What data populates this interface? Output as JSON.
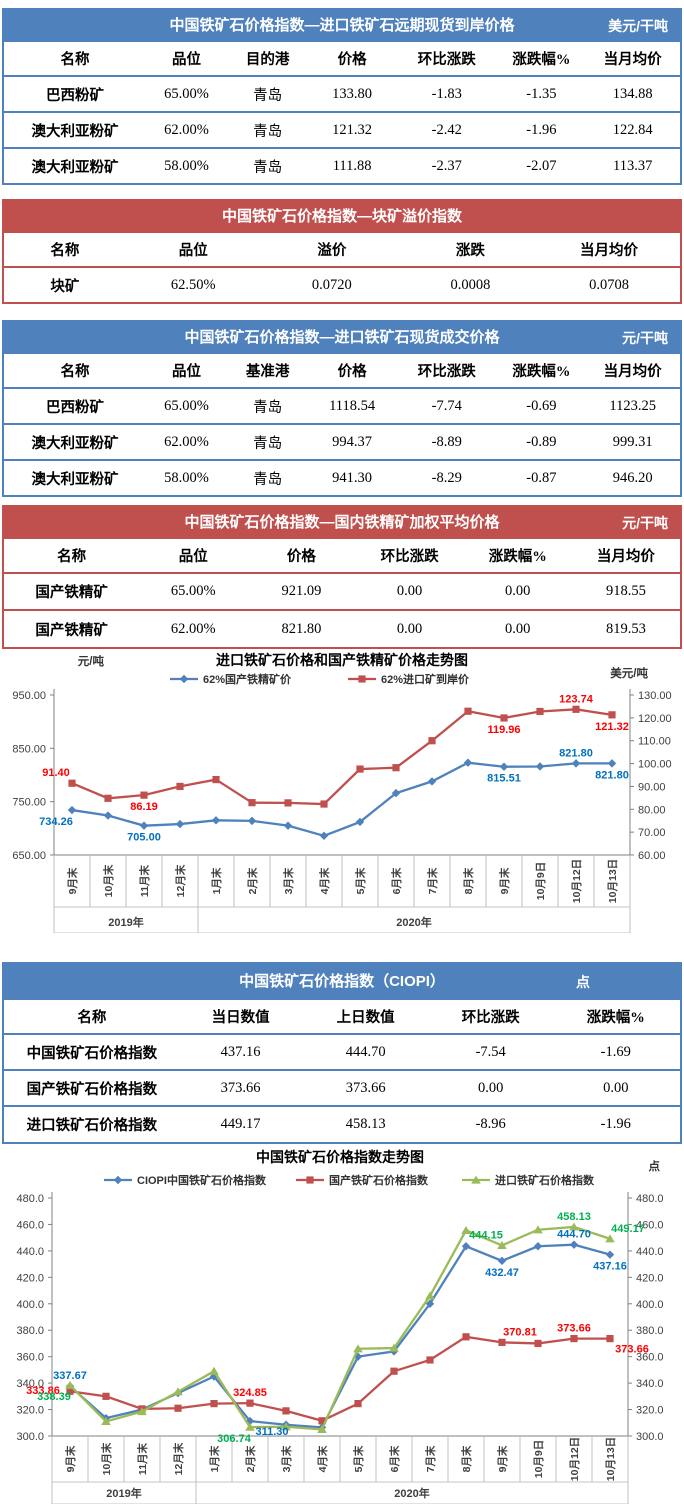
{
  "colors": {
    "blue_theme": "#4f81bd",
    "red_theme": "#c0504d",
    "label_blue": "#0070c0",
    "label_red": "#ff0000",
    "label_green": "#00b050"
  },
  "tables": {
    "t1": {
      "title": "中国铁矿石价格指数—进口铁矿石远期现货到岸价格",
      "unit": "美元/干吨",
      "headers": [
        "名称",
        "品位",
        "目的港",
        "价格",
        "环比涨跌",
        "涨跌幅%",
        "当月均价"
      ],
      "rows": [
        [
          "巴西粉矿",
          "65.00%",
          "青岛",
          "133.80",
          "-1.83",
          "-1.35",
          "134.88"
        ],
        [
          "澳大利亚粉矿",
          "62.00%",
          "青岛",
          "121.32",
          "-2.42",
          "-1.96",
          "122.84"
        ],
        [
          "澳大利亚粉矿",
          "58.00%",
          "青岛",
          "111.88",
          "-2.37",
          "-2.07",
          "113.37"
        ]
      ]
    },
    "t2": {
      "title": "中国铁矿石价格指数—块矿溢价指数",
      "headers": [
        "名称",
        "品位",
        "溢价",
        "涨跌",
        "当月均价"
      ],
      "rows": [
        [
          "块矿",
          "62.50%",
          "0.0720",
          "0.0008",
          "0.0708"
        ]
      ]
    },
    "t3": {
      "title": "中国铁矿石价格指数—进口铁矿石现货成交价格",
      "unit": "元/干吨",
      "headers": [
        "名称",
        "品位",
        "基准港",
        "价格",
        "环比涨跌",
        "涨跌幅%",
        "当月均价"
      ],
      "rows": [
        [
          "巴西粉矿",
          "65.00%",
          "青岛",
          "1118.54",
          "-7.74",
          "-0.69",
          "1123.25"
        ],
        [
          "澳大利亚粉矿",
          "62.00%",
          "青岛",
          "994.37",
          "-8.89",
          "-0.89",
          "999.31"
        ],
        [
          "澳大利亚粉矿",
          "58.00%",
          "青岛",
          "941.30",
          "-8.29",
          "-0.87",
          "946.20"
        ]
      ]
    },
    "t4": {
      "title": "中国铁矿石价格指数—国内铁精矿加权平均价格",
      "unit": "元/干吨",
      "headers": [
        "名称",
        "品位",
        "价格",
        "环比涨跌",
        "涨跌幅%",
        "当月均价"
      ],
      "rows": [
        [
          "国产铁精矿",
          "65.00%",
          "921.09",
          "0.00",
          "0.00",
          "918.55"
        ],
        [
          "国产铁精矿",
          "62.00%",
          "821.80",
          "0.00",
          "0.00",
          "819.53"
        ]
      ]
    },
    "t5": {
      "title": "中国铁矿石价格指数（CIOPI）",
      "unit": "点",
      "headers": [
        "名称",
        "当日数值",
        "上日数值",
        "环比涨跌",
        "涨跌幅%"
      ],
      "rows": [
        [
          "中国铁矿石价格指数",
          "437.16",
          "444.70",
          "-7.54",
          "-1.69"
        ],
        [
          "国产铁矿石价格指数",
          "373.66",
          "373.66",
          "0.00",
          "0.00"
        ],
        [
          "进口铁矿石价格指数",
          "449.17",
          "458.13",
          "-8.96",
          "-1.96"
        ]
      ]
    }
  },
  "chart_data": [
    {
      "type": "line",
      "title": "进口铁矿石价格和国产铁精矿价格走势图",
      "unit_left": "元/吨",
      "unit_right": "美元/吨",
      "grid": false,
      "legend_position": "top",
      "left_axis": {
        "min": 650,
        "max": 950,
        "step": 100,
        "decimals": 2
      },
      "right_axis": {
        "min": 60,
        "max": 130,
        "step": 10,
        "decimals": 2
      },
      "categories": [
        "9月末",
        "10月末",
        "11月末",
        "12月末",
        "1月末",
        "2月末",
        "3月末",
        "4月末",
        "5月末",
        "6月末",
        "7月末",
        "8月末",
        "9月末",
        "10月9日",
        "10月12日",
        "10月13日"
      ],
      "year_groups": [
        {
          "label": "2019年",
          "span": 4
        },
        {
          "label": "2020年",
          "span": 12
        }
      ],
      "series": [
        {
          "name": "62%国产铁精矿价",
          "color": "#4f81bd",
          "marker": "diamond",
          "axis": "left",
          "values": [
            734.26,
            724,
            705,
            708,
            715,
            714,
            705,
            686,
            712,
            766,
            788,
            823,
            815.51,
            816,
            821.8,
            821.8
          ]
        },
        {
          "name": "62%进口矿到岸价",
          "color": "#c0504d",
          "marker": "square",
          "axis": "right",
          "values": [
            91.4,
            84.8,
            86.19,
            90,
            93,
            82.9,
            82.8,
            82.3,
            97.6,
            98.2,
            110,
            122.9,
            119.96,
            122.8,
            123.74,
            121.32
          ]
        }
      ],
      "annotations": [
        {
          "series": 1,
          "index": 0,
          "text": "91.40",
          "color": "#ff0000",
          "pos": "above-left"
        },
        {
          "series": 0,
          "index": 0,
          "text": "734.26",
          "color": "#0070c0",
          "pos": "below-left"
        },
        {
          "series": 1,
          "index": 2,
          "text": "86.19",
          "color": "#ff0000",
          "pos": "below"
        },
        {
          "series": 0,
          "index": 2,
          "text": "705.00",
          "color": "#0070c0",
          "pos": "below"
        },
        {
          "series": 1,
          "index": 12,
          "text": "119.96",
          "color": "#ff0000",
          "pos": "below"
        },
        {
          "series": 0,
          "index": 12,
          "text": "815.51",
          "color": "#0070c0",
          "pos": "below"
        },
        {
          "series": 1,
          "index": 14,
          "text": "123.74",
          "color": "#ff0000",
          "pos": "above"
        },
        {
          "series": 0,
          "index": 14,
          "text": "821.80",
          "color": "#0070c0",
          "pos": "above"
        },
        {
          "series": 1,
          "index": 15,
          "text": "121.32",
          "color": "#ff0000",
          "pos": "below"
        },
        {
          "series": 0,
          "index": 15,
          "text": "821.80",
          "color": "#0070c0",
          "pos": "below"
        }
      ]
    },
    {
      "type": "line",
      "title": "中国铁矿石价格指数走势图",
      "unit_right": "点",
      "grid": false,
      "legend_position": "top",
      "left_axis": {
        "min": 300,
        "max": 480,
        "step": 20,
        "decimals": 1
      },
      "right_axis": {
        "min": 300,
        "max": 480,
        "step": 20,
        "decimals": 1
      },
      "categories": [
        "9月末",
        "10月末",
        "11月末",
        "12月末",
        "1月末",
        "2月末",
        "3月末",
        "4月末",
        "5月末",
        "6月末",
        "7月末",
        "8月末",
        "9月末",
        "10月9日",
        "10月12日",
        "10月13日"
      ],
      "year_groups": [
        {
          "label": "2019年",
          "span": 4
        },
        {
          "label": "2020年",
          "span": 12
        }
      ],
      "series": [
        {
          "name": "CIOPI中国铁矿石价格指数",
          "color": "#4f81bd",
          "marker": "diamond",
          "axis": "left",
          "values": [
            337.67,
            313.5,
            320,
            332.5,
            345,
            311.3,
            308.5,
            306.5,
            360,
            364,
            400,
            443.5,
            432.47,
            443.5,
            444.7,
            437.16
          ]
        },
        {
          "name": "国产铁矿石价格指数",
          "color": "#c0504d",
          "marker": "square",
          "axis": "left",
          "values": [
            333.86,
            330,
            320.5,
            321,
            324.5,
            324.85,
            319,
            311.5,
            324.5,
            349,
            357.5,
            375,
            370.81,
            370,
            373.66,
            373.66
          ]
        },
        {
          "name": "进口铁矿石价格指数",
          "color": "#9bbb59",
          "marker": "triangle",
          "axis": "left",
          "values": [
            338.39,
            311,
            318.5,
            333.5,
            349,
            306.74,
            307,
            305,
            366,
            366.5,
            406,
            455.5,
            444.15,
            456,
            458.13,
            449.17
          ]
        }
      ],
      "annotations": [
        {
          "series": 0,
          "index": 0,
          "text": "337.67",
          "color": "#0070c0",
          "pos": "above"
        },
        {
          "series": 1,
          "index": 0,
          "text": "333.86",
          "color": "#ff0000",
          "pos": "left"
        },
        {
          "series": 2,
          "index": 0,
          "text": "338.39",
          "color": "#00b050",
          "pos": "below-left"
        },
        {
          "series": 1,
          "index": 5,
          "text": "324.85",
          "color": "#ff0000",
          "pos": "above"
        },
        {
          "series": 2,
          "index": 5,
          "text": "306.74",
          "color": "#00b050",
          "pos": "below-left"
        },
        {
          "series": 0,
          "index": 5,
          "text": "311.30",
          "color": "#0070c0",
          "pos": "below-right"
        },
        {
          "series": 2,
          "index": 12,
          "text": "444.15",
          "color": "#00b050",
          "pos": "above-left"
        },
        {
          "series": 0,
          "index": 12,
          "text": "432.47",
          "color": "#0070c0",
          "pos": "below"
        },
        {
          "series": 1,
          "index": 12,
          "text": "370.81",
          "color": "#ff0000",
          "pos": "above-right"
        },
        {
          "series": 2,
          "index": 14,
          "text": "458.13",
          "color": "#00b050",
          "pos": "above"
        },
        {
          "series": 0,
          "index": 14,
          "text": "444.70",
          "color": "#0070c0",
          "pos": "above"
        },
        {
          "series": 1,
          "index": 14,
          "text": "373.66",
          "color": "#ff0000",
          "pos": "above"
        },
        {
          "series": 2,
          "index": 15,
          "text": "449.17",
          "color": "#00b050",
          "pos": "above-right"
        },
        {
          "series": 0,
          "index": 15,
          "text": "437.16",
          "color": "#0070c0",
          "pos": "below"
        },
        {
          "series": 1,
          "index": 15,
          "text": "373.66",
          "color": "#ff0000",
          "pos": "below-right"
        }
      ]
    }
  ]
}
